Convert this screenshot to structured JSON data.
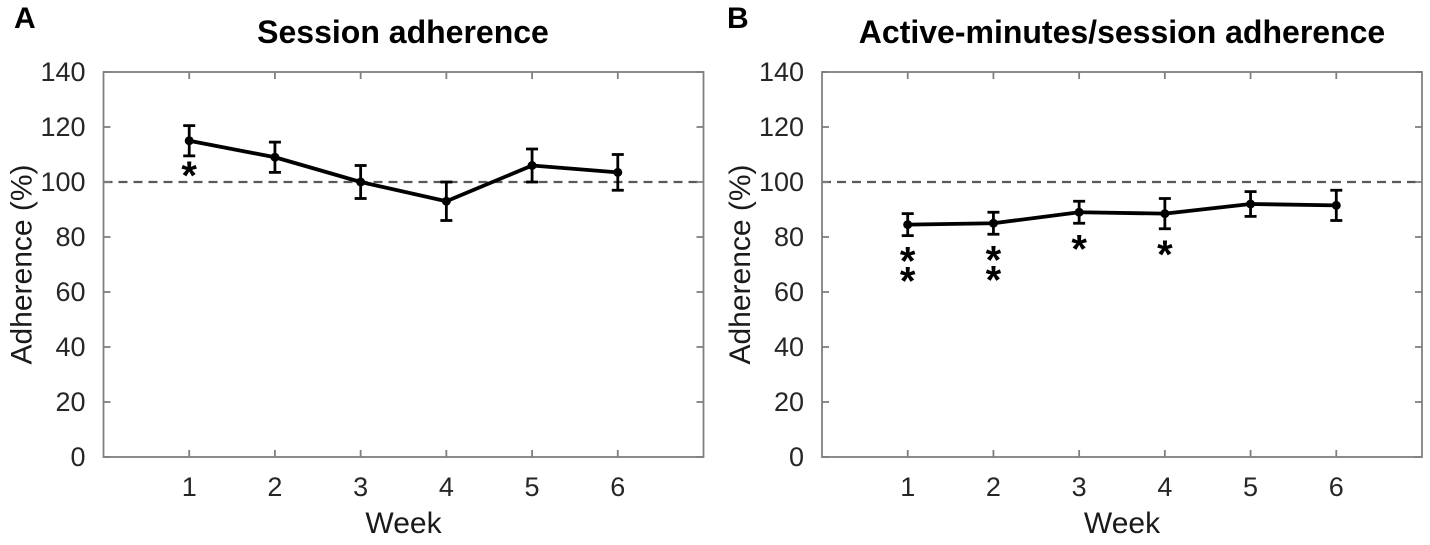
{
  "colors": {
    "frame": "#7f7f7f",
    "data": "#000000",
    "reference_line": "#595959",
    "tick_text": "#262626",
    "label_text": "#1a1a1a"
  },
  "chart_data": [
    {
      "type": "line",
      "panel_label": "A",
      "title": "Session adherence",
      "xlabel": "Week",
      "ylabel": "Adherence (%)",
      "x": [
        1,
        2,
        3,
        4,
        5,
        6
      ],
      "values": [
        115,
        109,
        100,
        93,
        106,
        103.5
      ],
      "error": [
        5.5,
        5.5,
        6,
        7,
        6,
        6.5
      ],
      "significance": [
        "*",
        "",
        "",
        "",
        "",
        ""
      ],
      "reference_line": 100,
      "reference_line_style": "dashed",
      "xlim": [
        0,
        7
      ],
      "ylim": [
        0,
        140
      ],
      "xticks": [
        1,
        2,
        3,
        4,
        5,
        6
      ],
      "yticks": [
        0,
        20,
        40,
        60,
        80,
        100,
        120,
        140
      ],
      "grid": false,
      "legend": null,
      "marker": "filled-circle",
      "sig_offset": 14,
      "sig_spacing": 20
    },
    {
      "type": "line",
      "panel_label": "B",
      "title": "Active-minutes/session adherence",
      "xlabel": "Week",
      "ylabel": "Adherence (%)",
      "x": [
        1,
        2,
        3,
        4,
        5,
        6
      ],
      "values": [
        84.5,
        85,
        89,
        88.5,
        92,
        91.5
      ],
      "error": [
        4,
        4,
        4,
        5.5,
        4.5,
        5.5
      ],
      "significance": [
        "**",
        "**",
        "*",
        "*",
        "",
        ""
      ],
      "reference_line": 100,
      "reference_line_style": "dashed",
      "xlim": [
        0,
        7
      ],
      "ylim": [
        0,
        140
      ],
      "xticks": [
        1,
        2,
        3,
        4,
        5,
        6
      ],
      "yticks": [
        0,
        20,
        40,
        60,
        80,
        100,
        120,
        140
      ],
      "grid": false,
      "legend": null,
      "marker": "filled-circle",
      "sig_offset": 20,
      "sig_spacing": 20
    }
  ]
}
